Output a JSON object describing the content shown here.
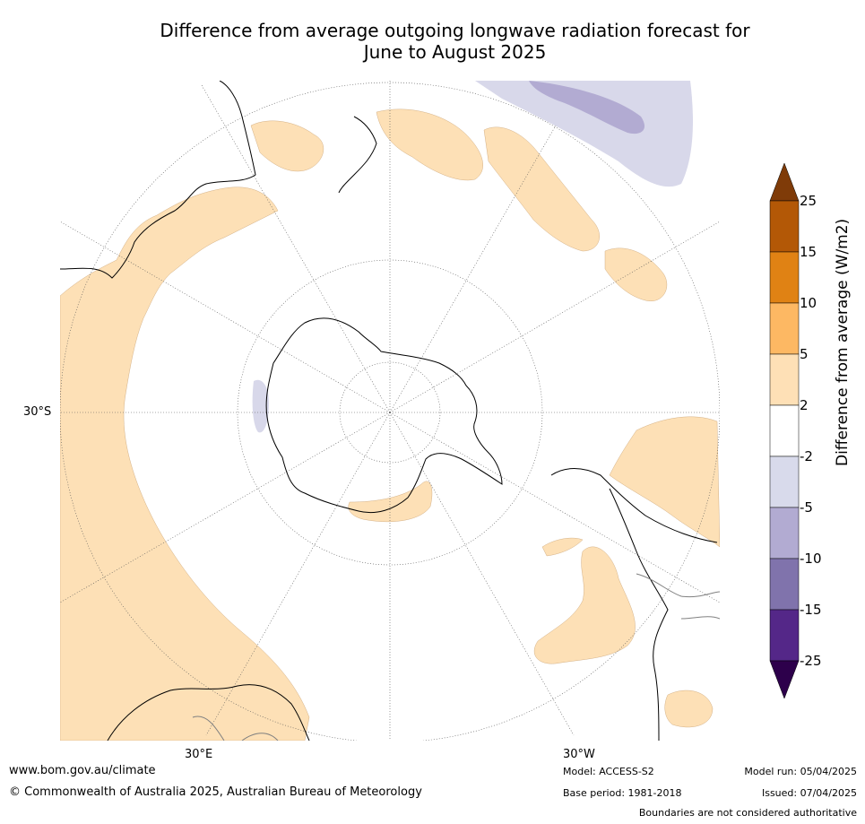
{
  "title": {
    "line1": "Difference from average outgoing longwave radiation forecast for",
    "line2": "June to August 2025"
  },
  "map": {
    "projection": "south-polar-stereographic",
    "lat_label": "30°S",
    "lon_labels": [
      "30°E",
      "30°W"
    ],
    "colors": {
      "pos_2_5": "#fde0b6",
      "neg_2_5": "#d8d8ea",
      "neg_5_10": "#b2abd2",
      "coast": "#000000",
      "border": "#808080",
      "graticule": "#555555"
    }
  },
  "colorbar": {
    "label": "Difference from average (W/m2)",
    "ticks": [
      "25",
      "15",
      "10",
      "5",
      "2",
      "-2",
      "-5",
      "-10",
      "-15",
      "-25"
    ],
    "bands": [
      {
        "range": "15 to 25",
        "color": "#b35806"
      },
      {
        "range": "10 to 15",
        "color": "#e08214"
      },
      {
        "range": "5 to 10",
        "color": "#fdb863"
      },
      {
        "range": "2 to 5",
        "color": "#fee0b6"
      },
      {
        "range": "-2 to 2",
        "color": "#ffffff"
      },
      {
        "range": "-5 to -2",
        "color": "#d8daeb"
      },
      {
        "range": "-10 to -5",
        "color": "#b2abd2"
      },
      {
        "range": "-15 to -10",
        "color": "#8073ac"
      },
      {
        "range": "-25 to -15",
        "color": "#542788"
      }
    ],
    "extend_top_color": "#7f3b08",
    "extend_bottom_color": "#2d004b"
  },
  "footer": {
    "url": "www.bom.gov.au/climate",
    "copyright": "© Commonwealth of Australia 2025, Australian Bureau of Meteorology",
    "model": "Model: ACCESS-S2",
    "base_period": "Base period: 1981-2018",
    "model_run": "Model run: 05/04/2025",
    "issued": "Issued: 07/04/2025",
    "disclaimer": "Boundaries are not considered authoritative"
  }
}
